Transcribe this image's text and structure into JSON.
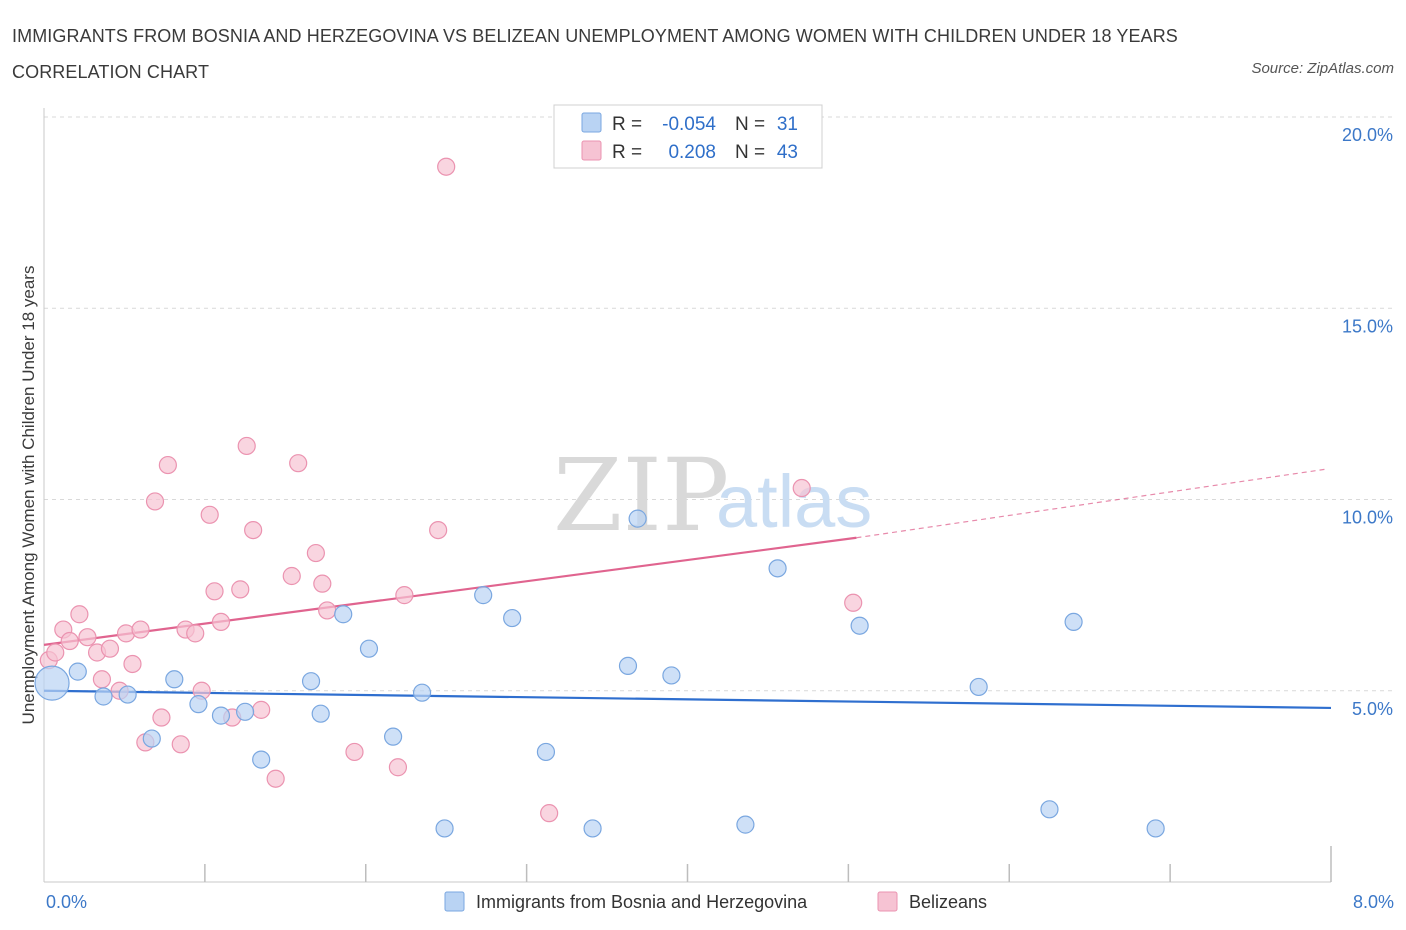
{
  "title": "IMMIGRANTS FROM BOSNIA AND HERZEGOVINA VS BELIZEAN UNEMPLOYMENT AMONG WOMEN WITH CHILDREN UNDER 18 YEARS CORRELATION CHART",
  "source": "Source: ZipAtlas.com",
  "watermark": {
    "zip": "ZIP",
    "atlas": "atlas"
  },
  "legend": {
    "r_label": "R =",
    "n_label": "N =",
    "rows": [
      {
        "r": "-0.054",
        "n": "31"
      },
      {
        "r": "0.208",
        "n": "43"
      }
    ]
  },
  "colors": {
    "blue_fill": "#b9d3f3",
    "blue_stroke": "#7aa7e0",
    "blue_line": "#2f6fcf",
    "pink_fill": "#f6c3d3",
    "pink_stroke": "#eb93b0",
    "pink_line": "#e0648f",
    "grid": "#d9d9d9",
    "tick_text": "#3c78c8"
  },
  "chart_data": {
    "type": "scatter",
    "title": "IMMIGRANTS FROM BOSNIA AND HERZEGOVINA VS BELIZEAN UNEMPLOYMENT AMONG WOMEN WITH CHILDREN UNDER 18 YEARS CORRELATION CHART",
    "xlabel": "",
    "ylabel": "Unemployment Among Women with Children Under 18 years",
    "xlim": [
      0,
      8
    ],
    "ylim": [
      0,
      20
    ],
    "x_tick_labels": [
      "0.0%",
      "8.0%"
    ],
    "y_ticks": [
      5,
      10,
      15,
      20
    ],
    "y_tick_labels": [
      "5.0%",
      "10.0%",
      "15.0%",
      "20.0%"
    ],
    "grid": true,
    "legend_position": "bottom",
    "series": [
      {
        "name": "Immigrants from Bosnia and Herzegovina",
        "color": "#b9d3f3",
        "r": -0.054,
        "n": 31,
        "trend": {
          "x": [
            0.0,
            8.0
          ],
          "y": [
            5.0,
            4.55
          ]
        },
        "points": [
          {
            "x": 0.05,
            "y": 5.2,
            "big": true
          },
          {
            "x": 0.21,
            "y": 5.5
          },
          {
            "x": 0.37,
            "y": 4.85
          },
          {
            "x": 0.52,
            "y": 4.9
          },
          {
            "x": 0.67,
            "y": 3.75
          },
          {
            "x": 0.81,
            "y": 5.3
          },
          {
            "x": 0.96,
            "y": 4.65
          },
          {
            "x": 1.1,
            "y": 4.35
          },
          {
            "x": 1.25,
            "y": 4.45
          },
          {
            "x": 1.35,
            "y": 3.2
          },
          {
            "x": 1.66,
            "y": 5.25
          },
          {
            "x": 1.72,
            "y": 4.4
          },
          {
            "x": 1.86,
            "y": 7.0
          },
          {
            "x": 2.02,
            "y": 6.1
          },
          {
            "x": 2.17,
            "y": 3.8
          },
          {
            "x": 2.35,
            "y": 4.95
          },
          {
            "x": 2.49,
            "y": 1.4
          },
          {
            "x": 2.73,
            "y": 7.5
          },
          {
            "x": 2.91,
            "y": 6.9
          },
          {
            "x": 3.12,
            "y": 3.4
          },
          {
            "x": 3.41,
            "y": 1.4
          },
          {
            "x": 3.63,
            "y": 5.65
          },
          {
            "x": 3.69,
            "y": 9.5
          },
          {
            "x": 3.9,
            "y": 5.4
          },
          {
            "x": 4.36,
            "y": 1.5
          },
          {
            "x": 4.56,
            "y": 8.2
          },
          {
            "x": 5.07,
            "y": 6.7
          },
          {
            "x": 5.81,
            "y": 5.1
          },
          {
            "x": 6.25,
            "y": 1.9
          },
          {
            "x": 6.4,
            "y": 6.8
          },
          {
            "x": 6.91,
            "y": 1.4
          }
        ]
      },
      {
        "name": "Belizeans",
        "color": "#f6c3d3",
        "r": 0.208,
        "n": 43,
        "trend": {
          "x": [
            0.0,
            5.05
          ],
          "y": [
            6.2,
            9.0
          ]
        },
        "trend_extension": {
          "x": [
            5.05,
            7.98
          ],
          "y": [
            9.0,
            10.8
          ]
        },
        "points": [
          {
            "x": 0.03,
            "y": 5.8
          },
          {
            "x": 0.07,
            "y": 6.0
          },
          {
            "x": 0.12,
            "y": 6.6
          },
          {
            "x": 0.16,
            "y": 6.3
          },
          {
            "x": 0.22,
            "y": 7.0
          },
          {
            "x": 0.27,
            "y": 6.4
          },
          {
            "x": 0.33,
            "y": 6.0
          },
          {
            "x": 0.36,
            "y": 5.3
          },
          {
            "x": 0.41,
            "y": 6.1
          },
          {
            "x": 0.47,
            "y": 5.0
          },
          {
            "x": 0.51,
            "y": 6.5
          },
          {
            "x": 0.55,
            "y": 5.7
          },
          {
            "x": 0.6,
            "y": 6.6
          },
          {
            "x": 0.63,
            "y": 3.65
          },
          {
            "x": 0.69,
            "y": 9.95
          },
          {
            "x": 0.73,
            "y": 4.3
          },
          {
            "x": 0.77,
            "y": 10.9
          },
          {
            "x": 0.85,
            "y": 3.6
          },
          {
            "x": 0.88,
            "y": 6.6
          },
          {
            "x": 0.94,
            "y": 6.5
          },
          {
            "x": 0.98,
            "y": 5.0
          },
          {
            "x": 1.03,
            "y": 9.6
          },
          {
            "x": 1.06,
            "y": 7.6
          },
          {
            "x": 1.1,
            "y": 6.8
          },
          {
            "x": 1.17,
            "y": 4.3
          },
          {
            "x": 1.22,
            "y": 7.65
          },
          {
            "x": 1.26,
            "y": 11.4
          },
          {
            "x": 1.3,
            "y": 9.2
          },
          {
            "x": 1.35,
            "y": 4.5
          },
          {
            "x": 1.44,
            "y": 2.7
          },
          {
            "x": 1.54,
            "y": 8.0
          },
          {
            "x": 1.58,
            "y": 10.95
          },
          {
            "x": 1.69,
            "y": 8.6
          },
          {
            "x": 1.73,
            "y": 7.8
          },
          {
            "x": 1.76,
            "y": 7.1
          },
          {
            "x": 1.93,
            "y": 3.4
          },
          {
            "x": 2.2,
            "y": 3.0
          },
          {
            "x": 2.24,
            "y": 7.5
          },
          {
            "x": 2.45,
            "y": 9.2
          },
          {
            "x": 2.5,
            "y": 18.7
          },
          {
            "x": 3.14,
            "y": 1.8
          },
          {
            "x": 4.71,
            "y": 10.3
          },
          {
            "x": 5.03,
            "y": 7.3
          }
        ]
      }
    ]
  }
}
